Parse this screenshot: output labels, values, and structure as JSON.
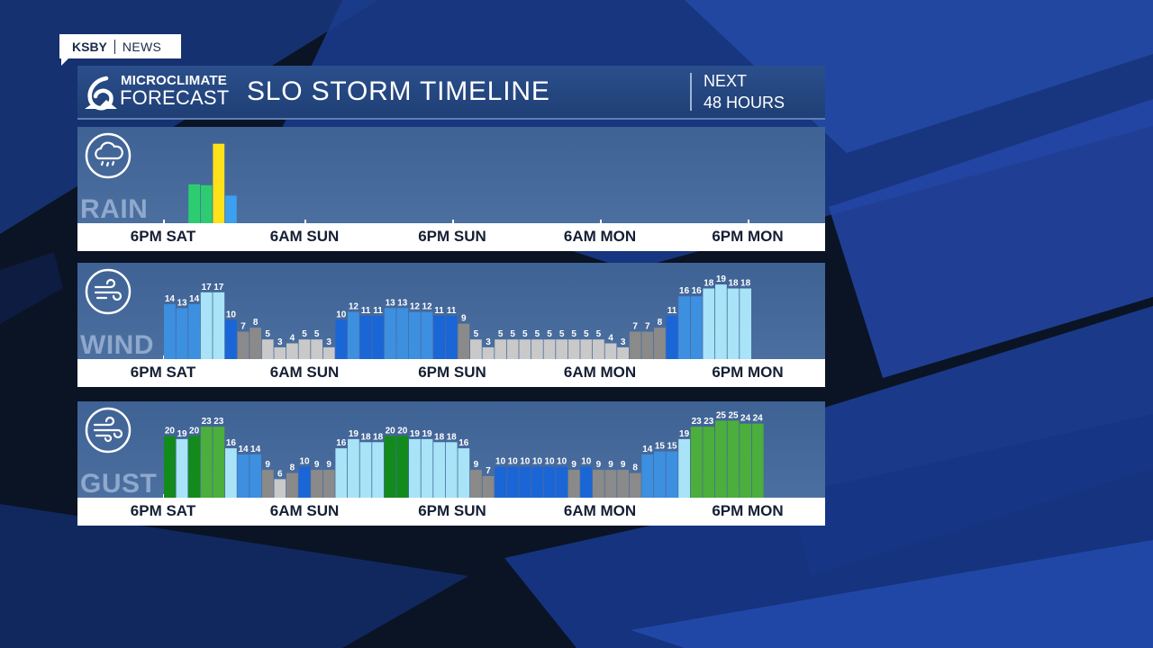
{
  "brand": {
    "station": "KSBY",
    "section": "NEWS"
  },
  "header": {
    "logo_line1": "MICROCLIMATE",
    "logo_line2": "FORECAST",
    "title": "SLO STORM TIMELINE",
    "range_line1": "NEXT",
    "range_line2": "48 HOURS"
  },
  "colors": {
    "rain_green": "#2ecc71",
    "rain_yellow": "#ffe21a",
    "rain_blue": "#3aa0ef",
    "light_blue": "#a8e3f7",
    "mid_blue": "#3d8fe0",
    "deep_blue": "#1b66d6",
    "gray": "#8a8a8a",
    "light_gray": "#c9c9c9",
    "green": "#4cae3c",
    "dark_green": "#138a1c"
  },
  "chart_data": [
    {
      "type": "bar",
      "title": "RAIN",
      "icon": "rain-cloud-icon",
      "x_tick_labels": [
        "6PM SAT",
        "6AM SUN",
        "6PM SUN",
        "6AM MON",
        "6PM MON"
      ],
      "start_hour_offset": 0,
      "values": [
        0,
        0,
        0.45,
        0.44,
        0.92,
        0.32
      ],
      "colors": [
        "",
        "",
        "#2ecc71",
        "#2ecc71",
        "#ffe21a",
        "#3aa0ef"
      ],
      "show_labels": false
    },
    {
      "type": "bar",
      "title": "WIND",
      "icon": "wind-icon",
      "x_tick_labels": [
        "6PM SAT",
        "6AM SUN",
        "6PM SUN",
        "6AM MON",
        "6PM MON"
      ],
      "start_hour_offset": 0,
      "values": [
        14,
        13,
        14,
        17,
        17,
        10,
        7,
        8,
        5,
        3,
        4,
        5,
        5,
        3,
        10,
        12,
        11,
        11,
        13,
        13,
        12,
        12,
        11,
        11,
        9,
        5,
        3,
        5,
        5,
        5,
        5,
        5,
        5,
        5,
        5,
        5,
        4,
        3,
        7,
        7,
        8,
        11,
        16,
        16,
        18,
        19,
        18,
        18
      ],
      "colors": [
        "#3d8fe0",
        "#3d8fe0",
        "#3d8fe0",
        "#a8e3f7",
        "#a8e3f7",
        "#1b66d6",
        "#8a8a8a",
        "#8a8a8a",
        "#c9c9c9",
        "#c9c9c9",
        "#c9c9c9",
        "#c9c9c9",
        "#c9c9c9",
        "#c9c9c9",
        "#1b66d6",
        "#3d8fe0",
        "#1b66d6",
        "#1b66d6",
        "#3d8fe0",
        "#3d8fe0",
        "#3d8fe0",
        "#3d8fe0",
        "#1b66d6",
        "#1b66d6",
        "#8a8a8a",
        "#c9c9c9",
        "#c9c9c9",
        "#c9c9c9",
        "#c9c9c9",
        "#c9c9c9",
        "#c9c9c9",
        "#c9c9c9",
        "#c9c9c9",
        "#c9c9c9",
        "#c9c9c9",
        "#c9c9c9",
        "#c9c9c9",
        "#c9c9c9",
        "#8a8a8a",
        "#8a8a8a",
        "#8a8a8a",
        "#1b66d6",
        "#3d8fe0",
        "#3d8fe0",
        "#a8e3f7",
        "#a8e3f7",
        "#a8e3f7",
        "#a8e3f7"
      ],
      "show_labels": true,
      "ylim": [
        0,
        22
      ]
    },
    {
      "type": "bar",
      "title": "GUST",
      "icon": "gust-wind-icon",
      "x_tick_labels": [
        "6PM SAT",
        "6AM SUN",
        "6PM SUN",
        "6AM MON",
        "6PM MON"
      ],
      "start_hour_offset": 0,
      "values": [
        20,
        19,
        20,
        23,
        23,
        16,
        14,
        14,
        9,
        6,
        8,
        10,
        9,
        9,
        16,
        19,
        18,
        18,
        20,
        20,
        19,
        19,
        18,
        18,
        16,
        9,
        7,
        10,
        10,
        10,
        10,
        10,
        10,
        9,
        10,
        9,
        9,
        9,
        8,
        14,
        15,
        15,
        19,
        23,
        23,
        25,
        25,
        24,
        24
      ],
      "colors": [
        "#138a1c",
        "#a8e3f7",
        "#138a1c",
        "#4cae3c",
        "#4cae3c",
        "#a8e3f7",
        "#3d8fe0",
        "#3d8fe0",
        "#8a8a8a",
        "#c9c9c9",
        "#8a8a8a",
        "#1b66d6",
        "#8a8a8a",
        "#8a8a8a",
        "#a8e3f7",
        "#a8e3f7",
        "#a8e3f7",
        "#a8e3f7",
        "#138a1c",
        "#138a1c",
        "#a8e3f7",
        "#a8e3f7",
        "#a8e3f7",
        "#a8e3f7",
        "#a8e3f7",
        "#8a8a8a",
        "#8a8a8a",
        "#1b66d6",
        "#1b66d6",
        "#1b66d6",
        "#1b66d6",
        "#1b66d6",
        "#1b66d6",
        "#8a8a8a",
        "#1b66d6",
        "#8a8a8a",
        "#8a8a8a",
        "#8a8a8a",
        "#8a8a8a",
        "#3d8fe0",
        "#3d8fe0",
        "#3d8fe0",
        "#a8e3f7",
        "#4cae3c",
        "#4cae3c",
        "#4cae3c",
        "#4cae3c",
        "#4cae3c",
        "#4cae3c"
      ],
      "show_labels": true,
      "ylim": [
        0,
        28
      ]
    }
  ]
}
